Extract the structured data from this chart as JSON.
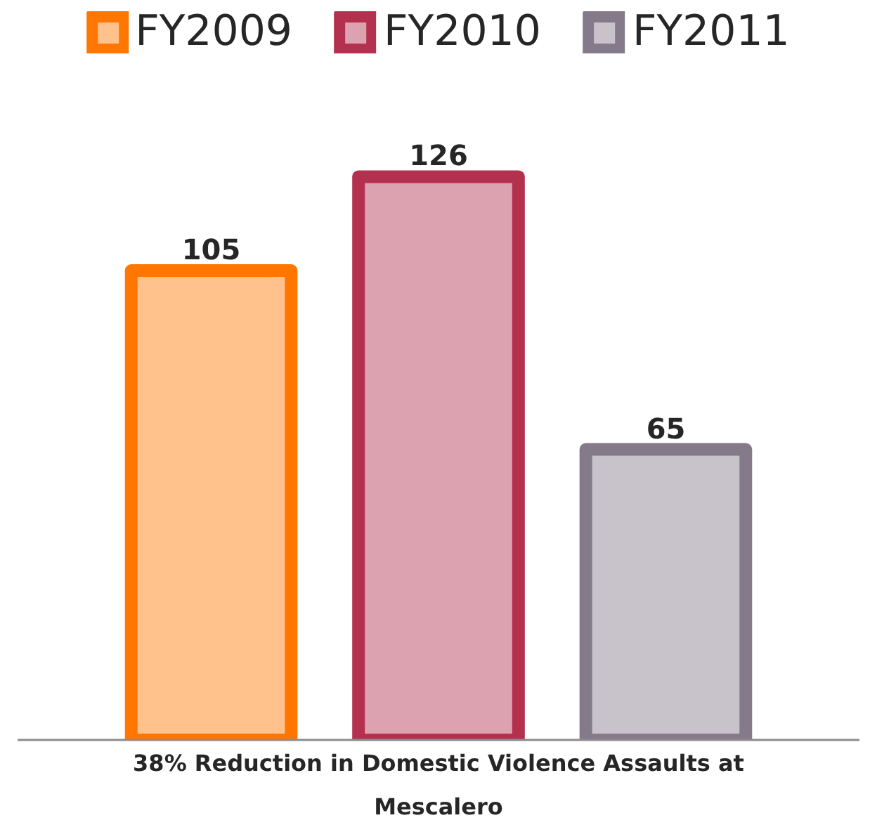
{
  "chart_data": {
    "type": "bar",
    "xlabel": "38% Reduction in Domestic Violence Assaults at Mescalero",
    "categories": [
      null
    ],
    "series": [
      {
        "name": "FY2009",
        "color": "#ff7700",
        "values": [
          105
        ]
      },
      {
        "name": "FY2010",
        "color": "#b4304f",
        "values": [
          126
        ]
      },
      {
        "name": "FY2011",
        "color": "#857a8a",
        "values": [
          65
        ]
      }
    ],
    "data_labels": true,
    "legend": "top"
  }
}
